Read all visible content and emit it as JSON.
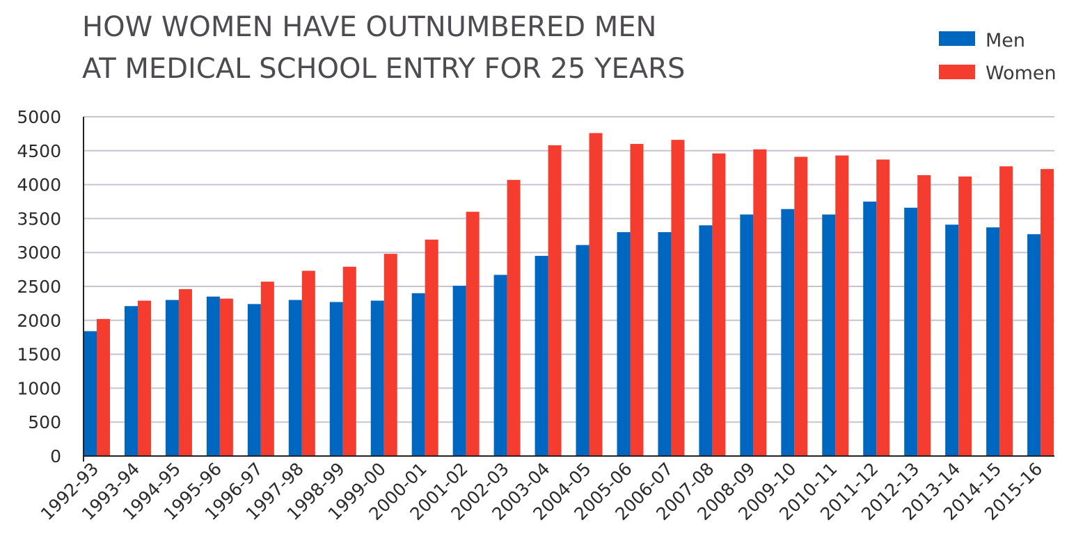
{
  "chart_data": {
    "type": "bar",
    "title": [
      "HOW WOMEN HAVE OUTNUMBERED MEN",
      "AT MEDICAL SCHOOL ENTRY FOR 25 YEARS"
    ],
    "xlabel": "",
    "ylabel": "",
    "ylim": [
      0,
      5000
    ],
    "yticks": [
      0,
      500,
      1000,
      1500,
      2000,
      2500,
      3000,
      3500,
      4000,
      4500,
      5000
    ],
    "grid": true,
    "legend_position": "top-right",
    "categories": [
      "1992-93",
      "1993-94",
      "1994-95",
      "1995-96",
      "1996-97",
      "1997-98",
      "1998-99",
      "1999-00",
      "2000-01",
      "2001-02",
      "2002-03",
      "2003-04",
      "2004-05",
      "2005-06",
      "2006-07",
      "2007-08",
      "2008-09",
      "2009-10",
      "2010-11",
      "2011-12",
      "2012-13",
      "2013-14",
      "2014-15",
      "2015-16"
    ],
    "series": [
      {
        "name": "Men",
        "color": "#0067c0",
        "values": [
          1840,
          2210,
          2300,
          2350,
          2240,
          2300,
          2270,
          2290,
          2400,
          2510,
          2670,
          2950,
          3110,
          3300,
          3300,
          3400,
          3560,
          3640,
          3560,
          3750,
          3660,
          3410,
          3370,
          3270
        ]
      },
      {
        "name": "Women",
        "color": "#f43d2e",
        "values": [
          2020,
          2290,
          2460,
          2320,
          2570,
          2730,
          2790,
          2980,
          3190,
          3600,
          4070,
          4580,
          4760,
          4600,
          4660,
          4460,
          4520,
          4410,
          4430,
          4370,
          4140,
          4120,
          4270,
          4230
        ]
      }
    ]
  }
}
